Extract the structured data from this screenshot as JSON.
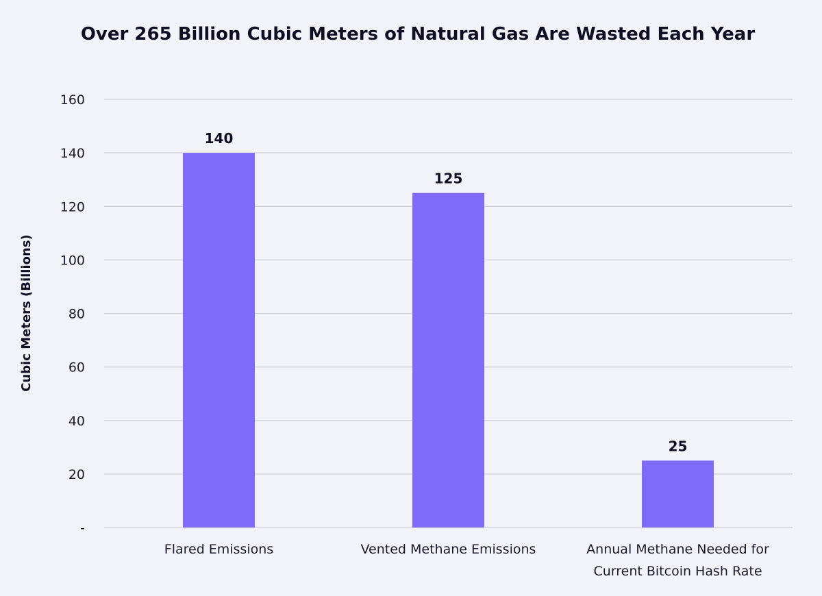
{
  "chart_data": {
    "type": "bar",
    "title": "Over 265 Billion Cubic Meters of Natural Gas Are Wasted Each Year",
    "xlabel": "",
    "ylabel": "Cubic Meters (Billions)",
    "categories": [
      [
        "Flared Emissions"
      ],
      [
        "Vented Methane Emissions"
      ],
      [
        "Annual Methane Needed for",
        "Current Bitcoin Hash Rate"
      ]
    ],
    "values": [
      140,
      125,
      25
    ],
    "data_labels": [
      "140",
      "125",
      "25"
    ],
    "ylim": [
      0,
      160
    ],
    "yticks": [
      0,
      20,
      40,
      60,
      80,
      100,
      120,
      140,
      160
    ],
    "ytick_labels": [
      "-",
      "20",
      "40",
      "60",
      "80",
      "100",
      "120",
      "140",
      "160"
    ],
    "grid": true,
    "legend": "none",
    "bar_color": "#7e6bf8"
  }
}
